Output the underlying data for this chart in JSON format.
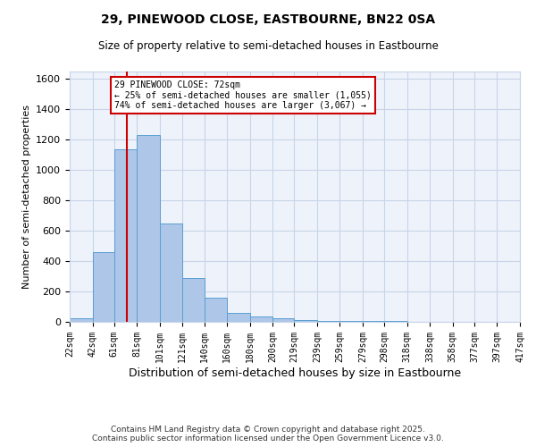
{
  "title1": "29, PINEWOOD CLOSE, EASTBOURNE, BN22 0SA",
  "title2": "Size of property relative to semi-detached houses in Eastbourne",
  "xlabel": "Distribution of semi-detached houses by size in Eastbourne",
  "ylabel": "Number of semi-detached properties",
  "bin_labels": [
    "22sqm",
    "42sqm",
    "61sqm",
    "81sqm",
    "101sqm",
    "121sqm",
    "140sqm",
    "160sqm",
    "180sqm",
    "200sqm",
    "219sqm",
    "239sqm",
    "259sqm",
    "279sqm",
    "298sqm",
    "318sqm",
    "338sqm",
    "358sqm",
    "377sqm",
    "397sqm",
    "417sqm"
  ],
  "bar_heights": [
    25,
    460,
    1140,
    1230,
    650,
    290,
    160,
    60,
    35,
    25,
    10,
    8,
    5,
    5,
    3,
    2,
    2,
    1,
    1,
    1
  ],
  "bar_color": "#aec6e8",
  "bar_edge_color": "#5a9fd4",
  "property_line_x": 72,
  "property_line_label": "29 PINEWOOD CLOSE: 72sqm",
  "pct_smaller": 25,
  "pct_larger": 74,
  "n_smaller": 1055,
  "n_larger": 3067,
  "annotation_box_color": "#cc0000",
  "vline_color": "#cc0000",
  "bin_edges": [
    22,
    42,
    61,
    81,
    101,
    121,
    140,
    160,
    180,
    200,
    219,
    239,
    259,
    279,
    298,
    318,
    338,
    358,
    377,
    397,
    417
  ],
  "ylim": [
    0,
    1650
  ],
  "footer1": "Contains HM Land Registry data © Crown copyright and database right 2025.",
  "footer2": "Contains public sector information licensed under the Open Government Licence v3.0.",
  "bg_color": "#eef2fb",
  "grid_color": "#c8d4e8"
}
